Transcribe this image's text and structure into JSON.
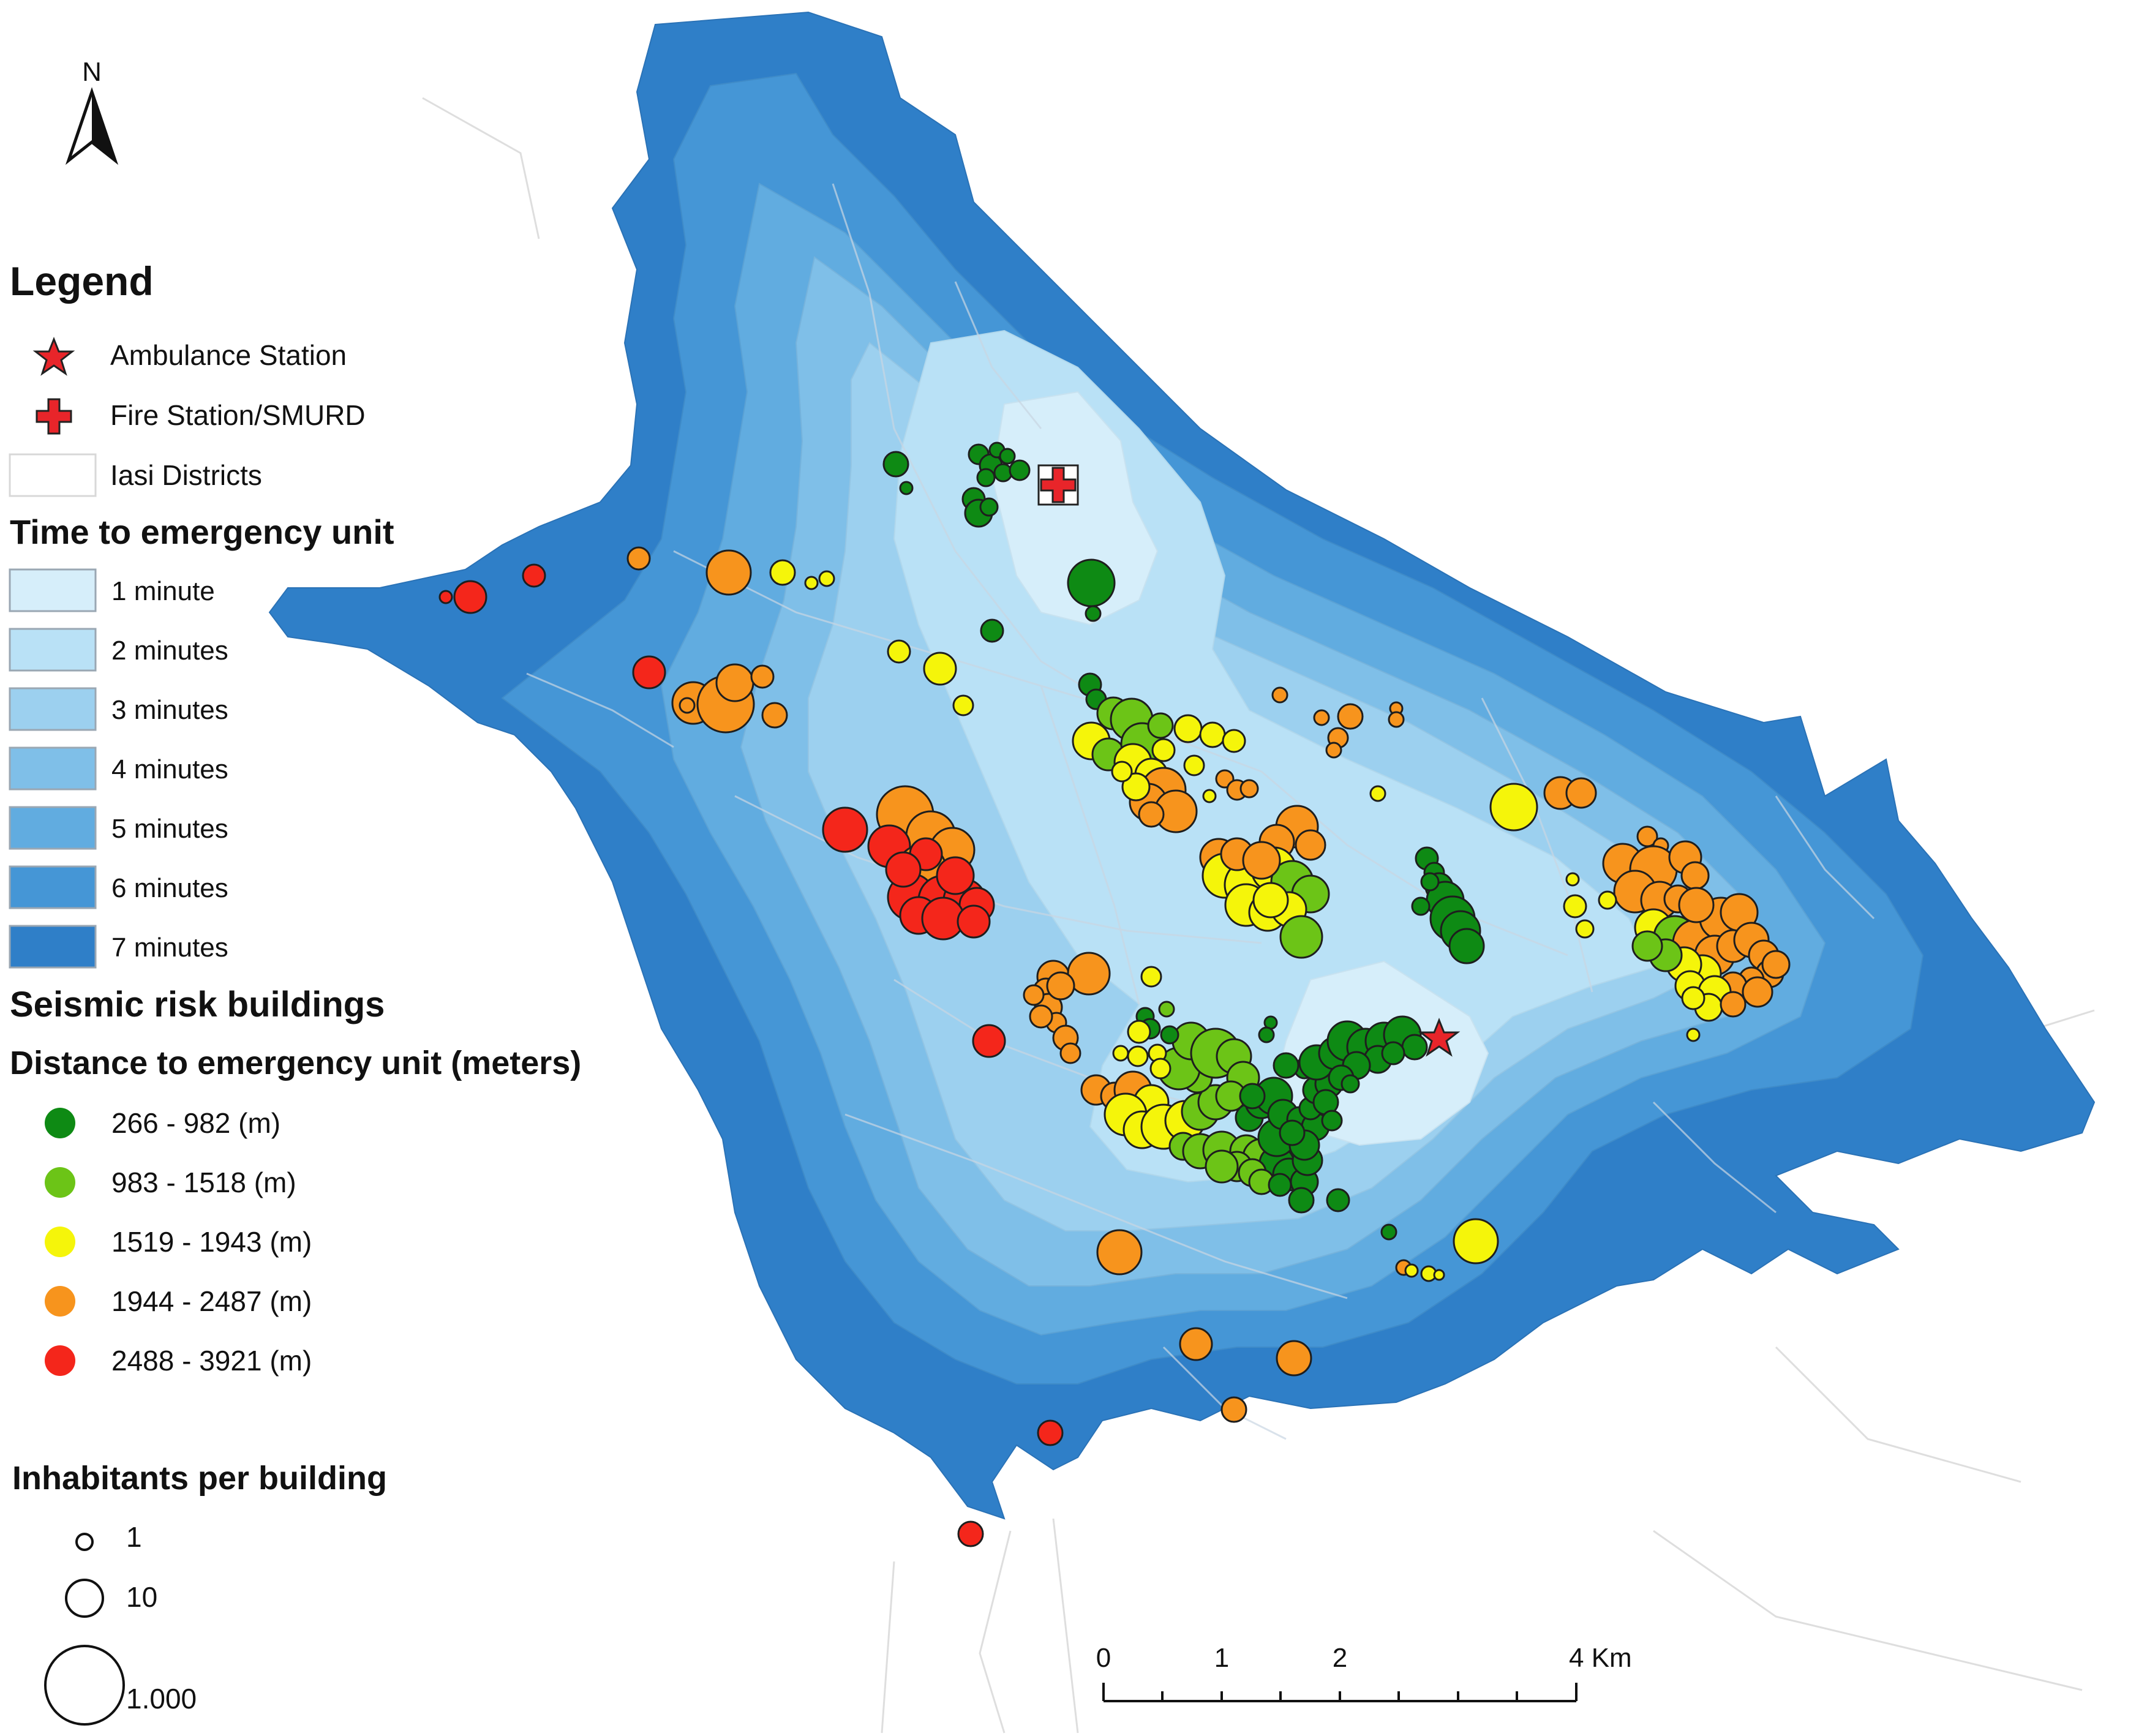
{
  "north_arrow": {
    "label": "N"
  },
  "legend": {
    "title": "Legend",
    "symbols": [
      {
        "label": "Ambulance Station",
        "icon": "star-icon",
        "color": "#e8252a"
      },
      {
        "label": "Fire Station/SMURD",
        "icon": "red-cross-icon",
        "color": "#e8252a"
      },
      {
        "label": "Iasi Districts",
        "icon": "district-outline-icon",
        "color": "#ffffff"
      }
    ],
    "time_heading": "Time to emergency unit",
    "time_classes": [
      {
        "label": "1 minute",
        "color": "#d6eefa"
      },
      {
        "label": "2 minutes",
        "color": "#b9e1f6"
      },
      {
        "label": "3 minutes",
        "color": "#9cd0ef"
      },
      {
        "label": "4 minutes",
        "color": "#7fbfe8"
      },
      {
        "label": "5 minutes",
        "color": "#61ace0"
      },
      {
        "label": "6 minutes",
        "color": "#4596d6"
      },
      {
        "label": "7 minutes",
        "color": "#2f7fc8"
      }
    ],
    "seismic_heading": "Seismic risk buildings",
    "distance_heading": "Distance to emergency unit (meters)",
    "distance_classes": [
      {
        "label": "266 - 982 (m)",
        "color": "#0e8a14"
      },
      {
        "label": "983 - 1518 (m)",
        "color": "#6cc417"
      },
      {
        "label": "1519 - 1943 (m)",
        "color": "#f5f50a"
      },
      {
        "label": "1944 - 2487 (m)",
        "color": "#f7941d"
      },
      {
        "label": "2488 - 3921 (m)",
        "color": "#f4261b"
      }
    ],
    "inhabitants_heading": "Inhabitants per building",
    "inhabitant_classes": [
      {
        "label": "1",
        "value": 1
      },
      {
        "label": "10",
        "value": 10
      },
      {
        "label": "1.000",
        "value": 1000
      }
    ]
  },
  "scale_bar": {
    "labels": [
      "0",
      "1",
      "2",
      "4 Km"
    ]
  },
  "colors": {
    "outline": "#222222",
    "district_line": "#c9d6e3",
    "background": "#ffffff"
  }
}
